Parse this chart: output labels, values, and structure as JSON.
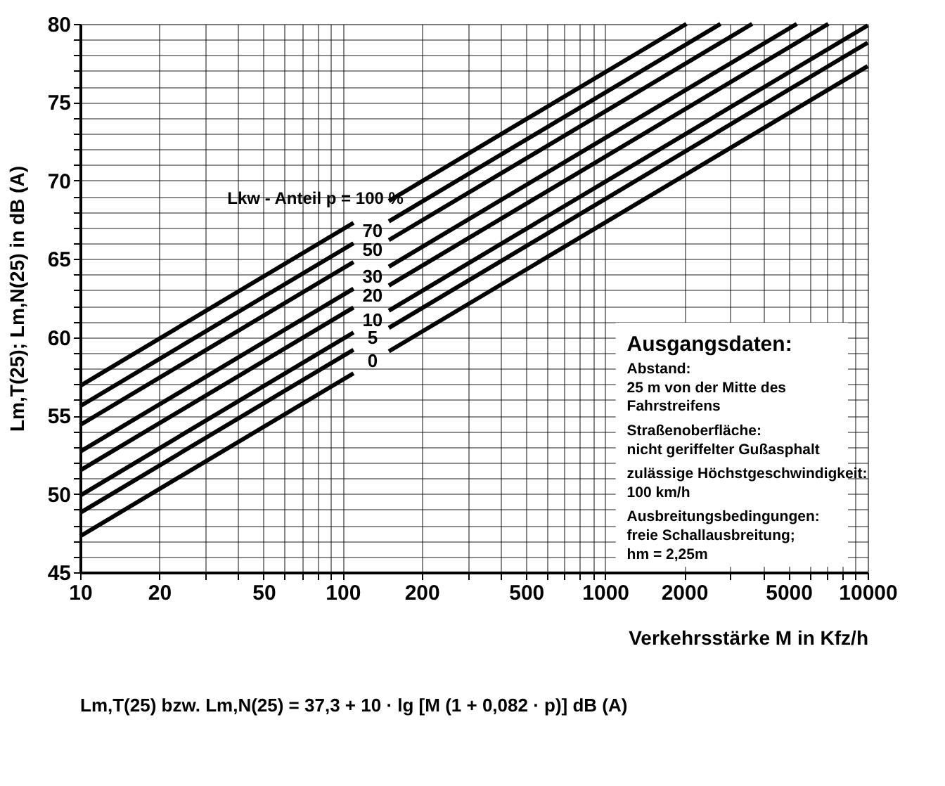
{
  "chart_data": {
    "type": "line",
    "xlabel": "Verkehrsstärke M in Kfz/h",
    "ylabel": "Lm,T(25); Lm,N(25) in dB (A)",
    "log": "x",
    "grid": true,
    "legend": false,
    "marker": "none",
    "line_style": "solid",
    "xlim": [
      10,
      10000
    ],
    "ylim": [
      45,
      80
    ],
    "xticks": [
      10,
      20,
      {
        "value": 30,
        "label": null
      },
      {
        "value": 40,
        "label": null
      },
      50,
      {
        "value": 60,
        "label": null
      },
      {
        "value": 70,
        "label": null
      },
      {
        "value": 80,
        "label": null
      },
      {
        "value": 90,
        "label": null
      },
      100,
      200,
      {
        "value": 300,
        "label": null
      },
      {
        "value": 400,
        "label": null
      },
      500,
      {
        "value": 600,
        "label": null
      },
      {
        "value": 700,
        "label": null
      },
      {
        "value": 800,
        "label": null
      },
      {
        "value": 900,
        "label": null
      },
      1000,
      2000,
      {
        "value": 3000,
        "label": null
      },
      {
        "value": 4000,
        "label": null
      },
      5000,
      {
        "value": 6000,
        "label": null
      },
      {
        "value": 7000,
        "label": null
      },
      {
        "value": 8000,
        "label": null
      },
      {
        "value": 9000,
        "label": null
      },
      10000
    ],
    "yticks": [
      45,
      {
        "value": 46,
        "label": null
      },
      {
        "value": 47,
        "label": null
      },
      {
        "value": 48,
        "label": null
      },
      {
        "value": 49,
        "label": null
      },
      50,
      {
        "value": 51,
        "label": null
      },
      {
        "value": 52,
        "label": null
      },
      {
        "value": 53,
        "label": null
      },
      {
        "value": 54,
        "label": null
      },
      55,
      {
        "value": 56,
        "label": null
      },
      {
        "value": 57,
        "label": null
      },
      {
        "value": 58,
        "label": null
      },
      {
        "value": 59,
        "label": null
      },
      60,
      {
        "value": 61,
        "label": null
      },
      {
        "value": 62,
        "label": null
      },
      {
        "value": 63,
        "label": null
      },
      {
        "value": 64,
        "label": null
      },
      65,
      {
        "value": 66,
        "label": null
      },
      {
        "value": 67,
        "label": null
      },
      {
        "value": 68,
        "label": null
      },
      {
        "value": 69,
        "label": null
      },
      70,
      {
        "value": 71,
        "label": null
      },
      {
        "value": 72,
        "label": null
      },
      {
        "value": 73,
        "label": null
      },
      {
        "value": 74,
        "label": null
      },
      75,
      {
        "value": 76,
        "label": null
      },
      {
        "value": 77,
        "label": null
      },
      {
        "value": 78,
        "label": null
      },
      {
        "value": 79,
        "label": null
      },
      80
    ],
    "series": [
      {
        "name": "Lkw - Anteil p = 100 %",
        "color": "#000000",
        "x": [
          10,
          110,
          130,
          150,
          2040
        ],
        "values": [
          56.9,
          67.3,
          null,
          68.7,
          80
        ]
      },
      {
        "name": "70",
        "color": "#000000",
        "x": [
          10,
          110,
          130,
          150,
          2750
        ],
        "values": [
          55.6,
          66.0,
          null,
          67.4,
          80
        ]
      },
      {
        "name": "50",
        "color": "#000000",
        "x": [
          10,
          110,
          130,
          150,
          3630
        ],
        "values": [
          54.4,
          64.8,
          null,
          66.2,
          80
        ]
      },
      {
        "name": "30",
        "color": "#000000",
        "x": [
          10,
          110,
          130,
          150,
          5370
        ],
        "values": [
          52.7,
          63.1,
          null,
          64.5,
          80
        ]
      },
      {
        "name": "20",
        "color": "#000000",
        "x": [
          10,
          110,
          130,
          150,
          7080
        ],
        "values": [
          51.5,
          61.9,
          null,
          63.3,
          80
        ]
      },
      {
        "name": "10",
        "color": "#000000",
        "x": [
          10,
          110,
          130,
          150,
          10000
        ],
        "values": [
          49.9,
          60.3,
          null,
          61.7,
          79.9
        ]
      },
      {
        "name": "5",
        "color": "#000000",
        "x": [
          10,
          110,
          130,
          150,
          10000
        ],
        "values": [
          48.8,
          59.2,
          null,
          60.6,
          78.8
        ]
      },
      {
        "name": "0",
        "color": "#000000",
        "x": [
          10,
          110,
          130,
          150,
          10000
        ],
        "values": [
          47.3,
          57.7,
          null,
          59.1,
          77.3
        ]
      }
    ],
    "annotations": [
      "Ausgangsdaten:",
      "Abstand:",
      "25 m von der Mitte des",
      "Fahrstreifens",
      "Straßenoberfläche:",
      "nicht geriffelter Gußasphalt",
      "zulässige Höchstgeschwindigkeit:",
      "100 km/h",
      "Ausbreitungsbedingungen:",
      "freie Schallausbreitung;",
      "hm = 2,25m",
      "Lm,T(25) bzw. Lm,N(25) = 37,3 + 10 · lg [M (1 + 0,082 · p)] dB (A)"
    ]
  }
}
